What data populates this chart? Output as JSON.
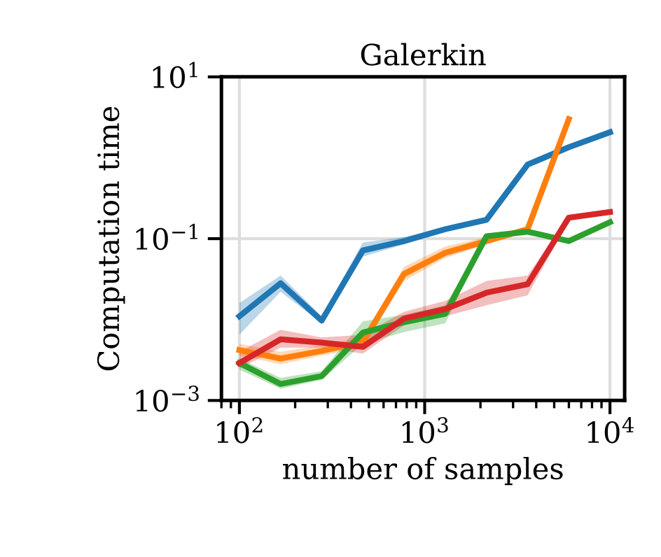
{
  "chart_data": {
    "type": "line",
    "title": "Galerkin",
    "xlabel": "number of samples",
    "ylabel": "Computation time",
    "x": [
      100,
      167,
      278,
      464,
      774,
      1292,
      2154,
      3594,
      5995,
      10000
    ],
    "series": [
      {
        "color": "#1f77b4",
        "values": [
          0.011,
          0.0281,
          0.0097,
          0.0716,
          0.0935,
          0.131,
          0.171,
          0.824,
          1.35,
          2.07
        ],
        "lower": [
          0.0065,
          0.022,
          0.009,
          0.06,
          0.085,
          0.125,
          0.165,
          0.8,
          1.3,
          2.0
        ],
        "upper": [
          0.016,
          0.035,
          0.011,
          0.09,
          0.105,
          0.14,
          0.18,
          0.85,
          1.4,
          2.15
        ]
      },
      {
        "color": "#ff7f0e",
        "values": [
          0.0042,
          0.0033,
          0.0041,
          0.0053,
          0.0367,
          0.067,
          0.0935,
          0.131,
          3.0,
          null
        ],
        "lower": [
          0.0036,
          0.0028,
          0.0036,
          0.0045,
          0.03,
          0.058,
          0.085,
          0.12,
          2.7,
          null
        ],
        "upper": [
          0.005,
          0.004,
          0.0048,
          0.006,
          0.045,
          0.08,
          0.105,
          0.14,
          3.3,
          null
        ]
      },
      {
        "color": "#2ca02c",
        "values": [
          0.0029,
          0.0016,
          0.002,
          0.0069,
          0.0093,
          0.0118,
          0.107,
          0.122,
          0.0935,
          0.16
        ],
        "lower": [
          0.0024,
          0.0014,
          0.0018,
          0.005,
          0.007,
          0.009,
          0.1,
          0.115,
          0.088,
          0.15
        ],
        "upper": [
          0.0033,
          0.0019,
          0.0023,
          0.0095,
          0.0115,
          0.015,
          0.115,
          0.13,
          0.1,
          0.17
        ]
      },
      {
        "color": "#d62728",
        "values": [
          0.0029,
          0.0057,
          0.0052,
          0.0046,
          0.0103,
          0.0135,
          0.0215,
          0.0274,
          0.182,
          0.214
        ],
        "lower": [
          0.0025,
          0.0045,
          0.0045,
          0.0038,
          0.0085,
          0.011,
          0.015,
          0.02,
          0.17,
          0.2
        ],
        "upper": [
          0.004,
          0.0075,
          0.006,
          0.0065,
          0.0125,
          0.017,
          0.03,
          0.035,
          0.195,
          0.23
        ]
      }
    ],
    "log": "xy",
    "xlim": [
      80,
      12000
    ],
    "ylim": [
      0.001,
      10
    ],
    "xticks": [
      {
        "value": 100,
        "label": "10$^{2}$"
      },
      {
        "value": 1000,
        "label": "10$^{3}$"
      },
      {
        "value": 10000,
        "label": "10$^{4}$"
      }
    ],
    "yticks": [
      {
        "value": 0.001,
        "label": "10$^{−3}$"
      },
      {
        "value": 0.1,
        "label": "10$^{−1}$"
      },
      {
        "value": 10,
        "label": "10$^{1}$"
      }
    ],
    "grid": true,
    "marker": "none",
    "line_style": "solid"
  }
}
